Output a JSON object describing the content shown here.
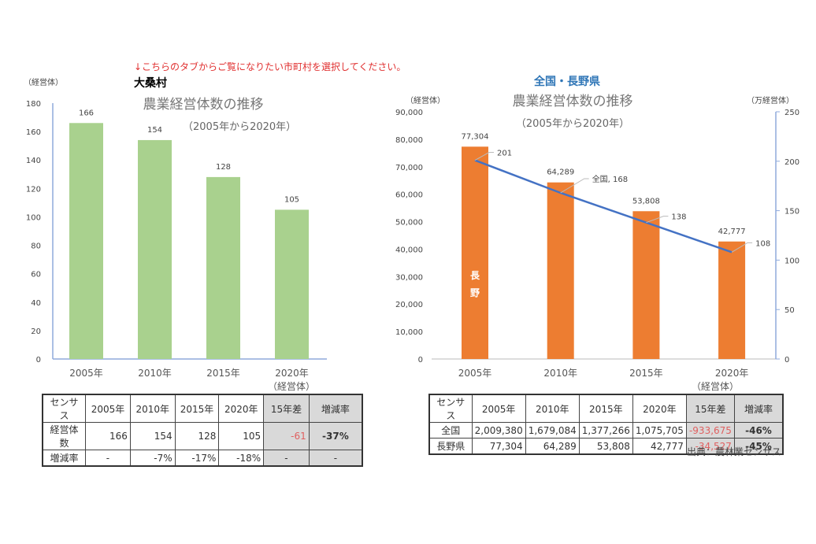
{
  "notice": "↓こちらのタブからご覧になりたい市町村を選択してください。",
  "source": "出典：農林業センサス",
  "colors": {
    "notice": "#e03030",
    "village_bar": "#a9d18e",
    "pref_bar": "#ed7d31",
    "national_line": "#4472c4",
    "right_title": "#2e75b6"
  },
  "chart_data": [
    {
      "type": "bar",
      "heading": "大桑村",
      "title": "農業経営体数の推移",
      "subtitle": "（2005年から2020年）",
      "ylabel": "（経営体）",
      "xlabel": "（経営体）",
      "categories": [
        "2005年",
        "2010年",
        "2015年",
        "2020年"
      ],
      "values": [
        166,
        154,
        128,
        105
      ],
      "ylim": [
        0,
        180
      ],
      "yticks": [
        0,
        20,
        40,
        60,
        80,
        100,
        120,
        140,
        160,
        180
      ],
      "grid": false
    },
    {
      "type": "bar+line",
      "heading": "全国・長野県",
      "title": "農業経営体数の推移",
      "subtitle": "（2005年から2020年）",
      "ylabel": "（経営体）",
      "y2label": "（万経営体）",
      "xlabel": "（経営体）",
      "categories": [
        "2005年",
        "2010年",
        "2015年",
        "2020年"
      ],
      "series": [
        {
          "name": "長野",
          "type": "bar",
          "axis": "left",
          "values": [
            77304,
            64289,
            53808,
            42777
          ],
          "labels": [
            "77,304",
            "64,289",
            "53,808",
            "42,777"
          ]
        },
        {
          "name": "全国",
          "type": "line",
          "axis": "right",
          "values": [
            201,
            168,
            138,
            108
          ],
          "labels": [
            "201",
            "全国, 168",
            "138",
            "108"
          ]
        }
      ],
      "ylim": [
        0,
        90000
      ],
      "yticks": [
        "0",
        "10,000",
        "20,000",
        "30,000",
        "40,000",
        "50,000",
        "60,000",
        "70,000",
        "80,000",
        "90,000"
      ],
      "y2lim": [
        0,
        250
      ],
      "y2ticks": [
        "0",
        "50",
        "100",
        "150",
        "200",
        "250"
      ],
      "grid": false
    }
  ],
  "table_left": {
    "header": [
      "センサス",
      "2005年",
      "2010年",
      "2015年",
      "2020年",
      "15年差",
      "増減率"
    ],
    "rows": [
      [
        "経営体数",
        "166",
        "154",
        "128",
        "105",
        "-61",
        "-37%"
      ],
      [
        "増減率",
        "-",
        "-7%",
        "-17%",
        "-18%",
        "-",
        "-"
      ]
    ]
  },
  "table_right": {
    "header": [
      "センサス",
      "2005年",
      "2010年",
      "2015年",
      "2020年",
      "15年差",
      "増減率"
    ],
    "rows": [
      [
        "全国",
        "2,009,380",
        "1,679,084",
        "1,377,266",
        "1,075,705",
        "-933,675",
        "-46%"
      ],
      [
        "長野県",
        "77,304",
        "64,289",
        "53,808",
        "42,777",
        "-34,527",
        "-45%"
      ]
    ]
  }
}
